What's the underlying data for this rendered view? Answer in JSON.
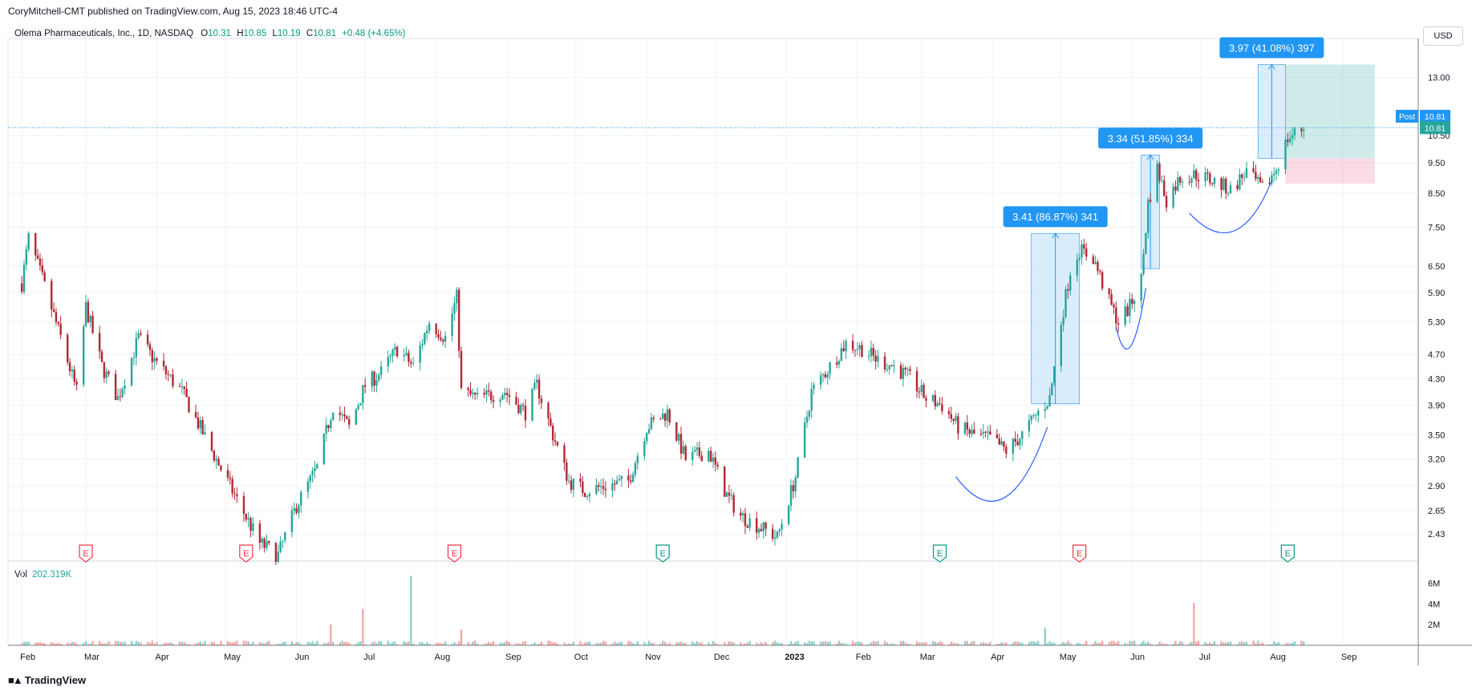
{
  "header": {
    "publisher": "CoryMitchell-CMT published on TradingView.com, Aug 15, 2023 18:46 UTC-4",
    "currency_button": "USD"
  },
  "legend": {
    "symbol": "Olema Pharmaceuticals, Inc., 1D, NASDAQ",
    "open_label": "O",
    "open": "10.31",
    "high_label": "H",
    "high": "10.85",
    "low_label": "L",
    "low": "10.19",
    "close_label": "C",
    "close": "10.81",
    "change": "+0.48 (+4.65%)"
  },
  "volume_legend": {
    "label": "Vol",
    "value": "202.319K"
  },
  "price_tags": {
    "post_label": "Post",
    "post_value": "10.81",
    "last_value": "10.81"
  },
  "footer": {
    "brand": "TradingView",
    "logo_icon": "tradingview-logo-icon"
  },
  "colors": {
    "up": "#26a69a",
    "down": "#b22833",
    "volume_up": "#26a69a",
    "volume_down": "#ef5350",
    "measure_fill": "#bbdefb",
    "measure_label": "#2196f3",
    "target_zone": "#26a69a",
    "stop_zone": "#e91e63",
    "earnings_red": "#f23645",
    "earnings_green": "#089981",
    "arc": "#2962ff",
    "last_price_line": "#2196f3"
  },
  "chart_data": {
    "type": "candlestick",
    "scale": "log",
    "ylim": [
      2.2,
      15.0
    ],
    "grid": true,
    "price_ticks": [
      "13.00",
      "10.50",
      "9.50",
      "8.50",
      "7.50",
      "6.50",
      "5.90",
      "5.30",
      "4.70",
      "4.30",
      "3.90",
      "3.50",
      "3.20",
      "2.90",
      "2.65",
      "2.43"
    ],
    "volume_ticks": [
      "6M",
      "4M",
      "2M"
    ],
    "x_tick_labels": [
      "Feb",
      "Mar",
      "Apr",
      "May",
      "Jun",
      "Jul",
      "Aug",
      "Sep",
      "Oct",
      "Nov",
      "Dec",
      "2023",
      "Feb",
      "Mar",
      "Apr",
      "May",
      "Jun",
      "Jul",
      "Aug",
      "Sep"
    ],
    "price_path": [
      [
        "2022-02-01",
        6.1
      ],
      [
        "2022-02-04",
        7.2
      ],
      [
        "2022-02-10",
        6.2
      ],
      [
        "2022-02-18",
        5.0
      ],
      [
        "2022-02-25",
        4.1
      ],
      [
        "2022-03-01",
        5.6
      ],
      [
        "2022-03-08",
        4.5
      ],
      [
        "2022-03-15",
        4.0
      ],
      [
        "2022-03-24",
        5.0
      ],
      [
        "2022-03-31",
        4.6
      ],
      [
        "2022-04-12",
        4.1
      ],
      [
        "2022-04-25",
        3.3
      ],
      [
        "2022-05-05",
        2.8
      ],
      [
        "2022-05-16",
        2.35
      ],
      [
        "2022-05-24",
        2.25
      ],
      [
        "2022-06-01",
        2.7
      ],
      [
        "2022-06-10",
        3.1
      ],
      [
        "2022-06-17",
        3.9
      ],
      [
        "2022-06-24",
        3.6
      ],
      [
        "2022-07-01",
        4.2
      ],
      [
        "2022-07-08",
        4.4
      ],
      [
        "2022-07-15",
        4.8
      ],
      [
        "2022-07-22",
        4.5
      ],
      [
        "2022-07-29",
        5.3
      ],
      [
        "2022-08-05",
        5.0
      ],
      [
        "2022-08-10",
        5.8
      ],
      [
        "2022-08-12",
        4.1
      ],
      [
        "2022-08-19",
        4.0
      ],
      [
        "2022-08-31",
        4.1
      ],
      [
        "2022-09-09",
        3.8
      ],
      [
        "2022-09-14",
        4.2
      ],
      [
        "2022-09-21",
        3.5
      ],
      [
        "2022-09-28",
        2.95
      ],
      [
        "2022-10-05",
        2.85
      ],
      [
        "2022-10-14",
        2.9
      ],
      [
        "2022-10-24",
        2.95
      ],
      [
        "2022-11-01",
        3.6
      ],
      [
        "2022-11-10",
        3.8
      ],
      [
        "2022-11-18",
        3.2
      ],
      [
        "2022-11-28",
        3.3
      ],
      [
        "2022-12-06",
        2.8
      ],
      [
        "2022-12-12",
        2.6
      ],
      [
        "2022-12-20",
        2.5
      ],
      [
        "2022-12-28",
        2.4
      ],
      [
        "2023-01-05",
        3.0
      ],
      [
        "2023-01-12",
        4.1
      ],
      [
        "2023-01-20",
        4.5
      ],
      [
        "2023-01-27",
        4.9
      ],
      [
        "2023-02-03",
        4.8
      ],
      [
        "2023-02-10",
        4.6
      ],
      [
        "2023-02-17",
        4.5
      ],
      [
        "2023-02-24",
        4.3
      ],
      [
        "2023-03-03",
        4.0
      ],
      [
        "2023-03-10",
        3.9
      ],
      [
        "2023-03-17",
        3.6
      ],
      [
        "2023-03-24",
        3.5
      ],
      [
        "2023-03-31",
        3.45
      ],
      [
        "2023-04-07",
        3.3
      ],
      [
        "2023-04-14",
        3.5
      ],
      [
        "2023-04-21",
        3.8
      ],
      [
        "2023-04-26",
        4.0
      ],
      [
        "2023-05-01",
        5.3
      ],
      [
        "2023-05-05",
        6.4
      ],
      [
        "2023-05-09",
        6.9
      ],
      [
        "2023-05-15",
        6.7
      ],
      [
        "2023-05-22",
        5.7
      ],
      [
        "2023-05-26",
        5.3
      ],
      [
        "2023-05-31",
        5.6
      ],
      [
        "2023-06-05",
        6.2
      ],
      [
        "2023-06-08",
        8.2
      ],
      [
        "2023-06-12",
        9.3
      ],
      [
        "2023-06-16",
        8.3
      ],
      [
        "2023-06-22",
        9.0
      ],
      [
        "2023-06-29",
        9.1
      ],
      [
        "2023-07-06",
        8.9
      ],
      [
        "2023-07-14",
        8.6
      ],
      [
        "2023-07-21",
        9.2
      ],
      [
        "2023-07-28",
        8.6
      ],
      [
        "2023-08-03",
        9.3
      ],
      [
        "2023-08-08",
        10.4
      ],
      [
        "2023-08-15",
        10.81
      ]
    ],
    "volume_spikes": [
      [
        "2022-06-16",
        2.0,
        "down"
      ],
      [
        "2022-06-30",
        3.5,
        "down"
      ],
      [
        "2022-07-21",
        6.7,
        "up"
      ],
      [
        "2022-08-12",
        1.5,
        "down"
      ],
      [
        "2023-04-24",
        1.7,
        "up"
      ],
      [
        "2023-06-28",
        4.1,
        "down"
      ]
    ],
    "measurements": [
      {
        "label": "3.41 (86.87%) 341",
        "from_date": "2023-04-18",
        "to_date": "2023-05-09",
        "from_price": 3.92,
        "to_price": 7.33
      },
      {
        "label": "3.34 (51.85%) 334",
        "from_date": "2023-06-05",
        "to_date": "2023-06-13",
        "from_price": 6.44,
        "to_price": 9.78
      },
      {
        "label": "3.97 (41.08%) 397",
        "from_date": "2023-07-26",
        "to_date": "2023-08-07",
        "from_price": 9.66,
        "to_price": 13.63
      }
    ],
    "position_tool": {
      "entry": 9.66,
      "target": 13.63,
      "stop": 8.8,
      "from_date": "2023-08-07",
      "to_date": "2023-09-15"
    },
    "earnings_markers": [
      {
        "date": "2022-03-01",
        "label": "E",
        "color": "red"
      },
      {
        "date": "2022-05-10",
        "label": "E",
        "color": "red"
      },
      {
        "date": "2022-08-09",
        "label": "E",
        "color": "red"
      },
      {
        "date": "2022-11-08",
        "label": "E",
        "color": "green"
      },
      {
        "date": "2023-03-09",
        "label": "E",
        "color": "green"
      },
      {
        "date": "2023-05-09",
        "label": "E",
        "color": "red"
      },
      {
        "date": "2023-08-08",
        "label": "E",
        "color": "green"
      }
    ],
    "arcs": [
      {
        "from_date": "2023-03-16",
        "from_price": 3.0,
        "bottom_date": "2023-04-07",
        "bottom_price": 2.75,
        "to_date": "2023-04-25",
        "to_price": 3.6
      },
      {
        "from_date": "2023-05-25",
        "from_price": 5.2,
        "bottom_date": "2023-05-31",
        "bottom_price": 4.8,
        "to_date": "2023-06-07",
        "to_price": 6.0
      },
      {
        "from_date": "2023-06-26",
        "from_price": 7.9,
        "bottom_date": "2023-07-17",
        "bottom_price": 7.35,
        "to_date": "2023-08-01",
        "to_price": 8.9
      }
    ]
  }
}
